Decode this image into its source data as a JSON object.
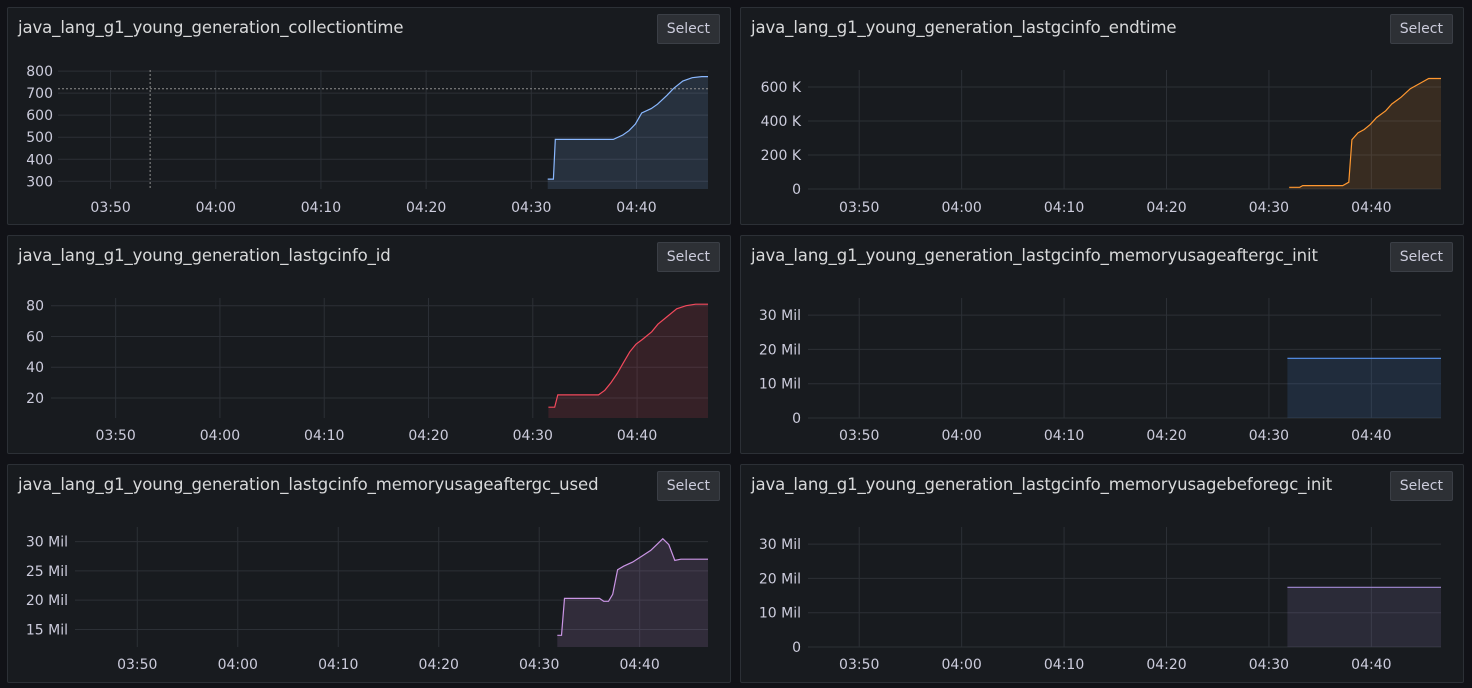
{
  "select_label": "Select",
  "panels": [
    {
      "title": "java_lang_g1_young_generation_collectiontime",
      "color": "#8ab8ff",
      "chart_data": {
        "type": "area",
        "x_ticks": [
          "03:50",
          "04:00",
          "04:10",
          "04:20",
          "04:30",
          "04:40"
        ],
        "y_ticks": [
          "300",
          "400",
          "500",
          "600",
          "700",
          "800"
        ],
        "y_values": [
          300,
          400,
          500,
          600,
          700,
          800
        ],
        "ylim": [
          265,
          805
        ],
        "xlim": [
          3.75,
          4.78
        ],
        "series": [
          {
            "x": [
              4.526,
              4.535,
              4.538,
              4.55,
              4.575,
              4.63,
              4.645,
              4.655,
              4.665,
              4.675,
              4.69,
              4.7,
              4.715,
              4.725,
              4.74,
              4.755,
              4.77,
              4.78
            ],
            "y": [
              310,
              310,
              490,
              490,
              490,
              490,
              510,
              530,
              560,
              610,
              630,
              650,
              690,
              720,
              755,
              770,
              775,
              775
            ]
          }
        ],
        "crosshair": {
          "x": 3.896,
          "y": 720
        }
      }
    },
    {
      "title": "java_lang_g1_young_generation_lastgcinfo_endtime",
      "color": "#ff9830",
      "chart_data": {
        "type": "area",
        "x_ticks": [
          "03:50",
          "04:00",
          "04:10",
          "04:20",
          "04:30",
          "04:40"
        ],
        "y_ticks": [
          "0",
          "200 K",
          "400 K",
          "600 K"
        ],
        "y_values": [
          0,
          200000,
          400000,
          600000
        ],
        "ylim": [
          0,
          700000
        ],
        "xlim": [
          3.75,
          4.78
        ],
        "series": [
          {
            "x": [
              4.533,
              4.55,
              4.555,
              4.62,
              4.63,
              4.635,
              4.645,
              4.655,
              4.665,
              4.675,
              4.69,
              4.7,
              4.715,
              4.73,
              4.745,
              4.76,
              4.78
            ],
            "y": [
              10000,
              10000,
              20000,
              20000,
              40000,
              290000,
              330000,
              350000,
              380000,
              420000,
              460000,
              500000,
              540000,
              590000,
              620000,
              650000,
              650000
            ]
          }
        ]
      }
    },
    {
      "title": "java_lang_g1_young_generation_lastgcinfo_id",
      "color": "#f2495c",
      "chart_data": {
        "type": "area",
        "x_ticks": [
          "03:50",
          "04:00",
          "04:10",
          "04:20",
          "04:30",
          "04:40"
        ],
        "y_ticks": [
          "20",
          "40",
          "60",
          "80"
        ],
        "y_values": [
          20,
          40,
          60,
          80
        ],
        "ylim": [
          7,
          85
        ],
        "xlim": [
          3.73,
          4.78
        ],
        "series": [
          {
            "x": [
              4.525,
              4.535,
              4.54,
              4.58,
              4.605,
              4.615,
              4.625,
              4.635,
              4.645,
              4.655,
              4.665,
              4.675,
              4.69,
              4.7,
              4.715,
              4.73,
              4.745,
              4.76,
              4.78
            ],
            "y": [
              14,
              14,
              22,
              22,
              22,
              25,
              30,
              36,
              43,
              50,
              55,
              58,
              63,
              68,
              73,
              78,
              80,
              81,
              81
            ]
          }
        ]
      }
    },
    {
      "title": "java_lang_g1_young_generation_lastgcinfo_memoryusageaftergc_init",
      "color": "#5794f2",
      "chart_data": {
        "type": "area",
        "x_ticks": [
          "03:50",
          "04:00",
          "04:10",
          "04:20",
          "04:30",
          "04:40"
        ],
        "y_ticks": [
          "0",
          "10 Mil",
          "20 Mil",
          "30 Mil"
        ],
        "y_values": [
          0,
          10000000,
          20000000,
          30000000
        ],
        "ylim": [
          0,
          35000000
        ],
        "xlim": [
          3.75,
          4.78
        ],
        "series": [
          {
            "x": [
              4.53,
              4.78
            ],
            "y": [
              17400000,
              17400000
            ]
          }
        ]
      }
    },
    {
      "title": "java_lang_g1_young_generation_lastgcinfo_memoryusageaftergc_used",
      "color": "#ca95e5",
      "chart_data": {
        "type": "area",
        "x_ticks": [
          "03:50",
          "04:00",
          "04:10",
          "04:20",
          "04:30",
          "04:40"
        ],
        "y_ticks": [
          "15 Mil",
          "20 Mil",
          "25 Mil",
          "30 Mil"
        ],
        "y_values": [
          15000000,
          20000000,
          25000000,
          30000000
        ],
        "ylim": [
          12000000,
          32500000
        ],
        "xlim": [
          3.73,
          4.78
        ],
        "series": [
          {
            "x": [
              4.53,
              4.537,
              4.542,
              4.6,
              4.607,
              4.615,
              4.622,
              4.63,
              4.64,
              4.655,
              4.67,
              4.685,
              4.695,
              4.705,
              4.715,
              4.725,
              4.735,
              4.745,
              4.78
            ],
            "y": [
              14000000,
              14000000,
              20300000,
              20300000,
              19800000,
              19800000,
              21000000,
              25200000,
              25800000,
              26500000,
              27500000,
              28500000,
              29500000,
              30500000,
              29500000,
              26800000,
              27000000,
              27000000,
              27000000
            ]
          }
        ]
      }
    },
    {
      "title": "java_lang_g1_young_generation_lastgcinfo_memoryusagebeforegc_init",
      "color": "#a38bd6",
      "chart_data": {
        "type": "area",
        "x_ticks": [
          "03:50",
          "04:00",
          "04:10",
          "04:20",
          "04:30",
          "04:40"
        ],
        "y_ticks": [
          "0",
          "10 Mil",
          "20 Mil",
          "30 Mil"
        ],
        "y_values": [
          0,
          10000000,
          20000000,
          30000000
        ],
        "ylim": [
          0,
          35000000
        ],
        "xlim": [
          3.75,
          4.78
        ],
        "series": [
          {
            "x": [
              4.53,
              4.78
            ],
            "y": [
              17400000,
              17400000
            ]
          }
        ]
      }
    }
  ]
}
